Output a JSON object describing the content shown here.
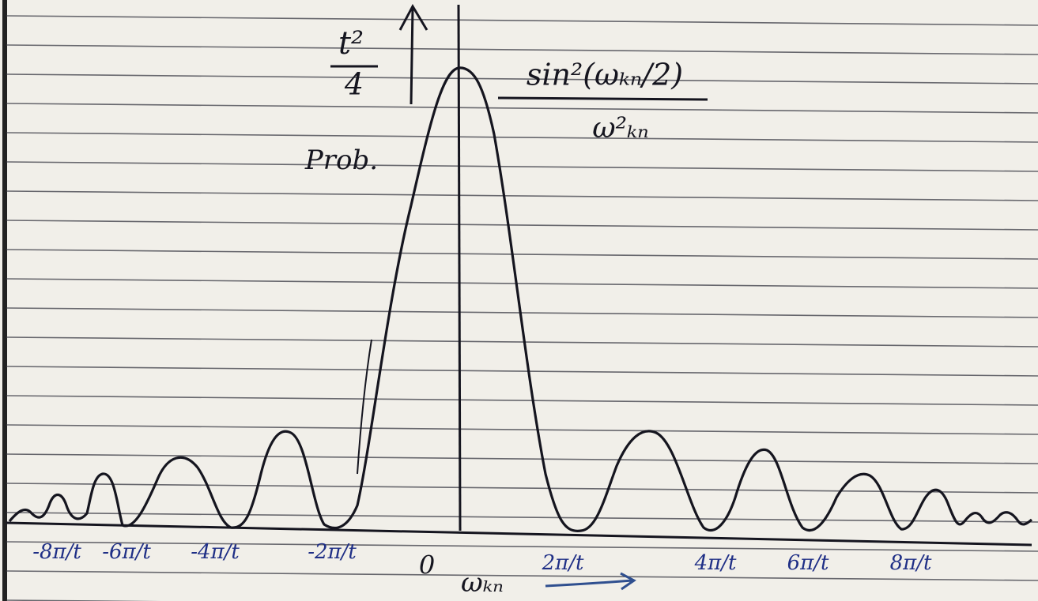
{
  "y_axis": {
    "label_numerator": "t²",
    "label_denominator": "4",
    "caption": "Prob."
  },
  "formula": {
    "numerator": "sin²(ωₖₙ/2)",
    "denominator": "ω²ₖₙ"
  },
  "x_axis": {
    "origin": "0",
    "label": "ωₖₙ",
    "ticks": [
      "-8π/t",
      "-6π/t",
      "-4π/t",
      "-2π/t",
      "2π/t",
      "4π/t",
      "6π/t",
      "8π/t"
    ]
  }
}
